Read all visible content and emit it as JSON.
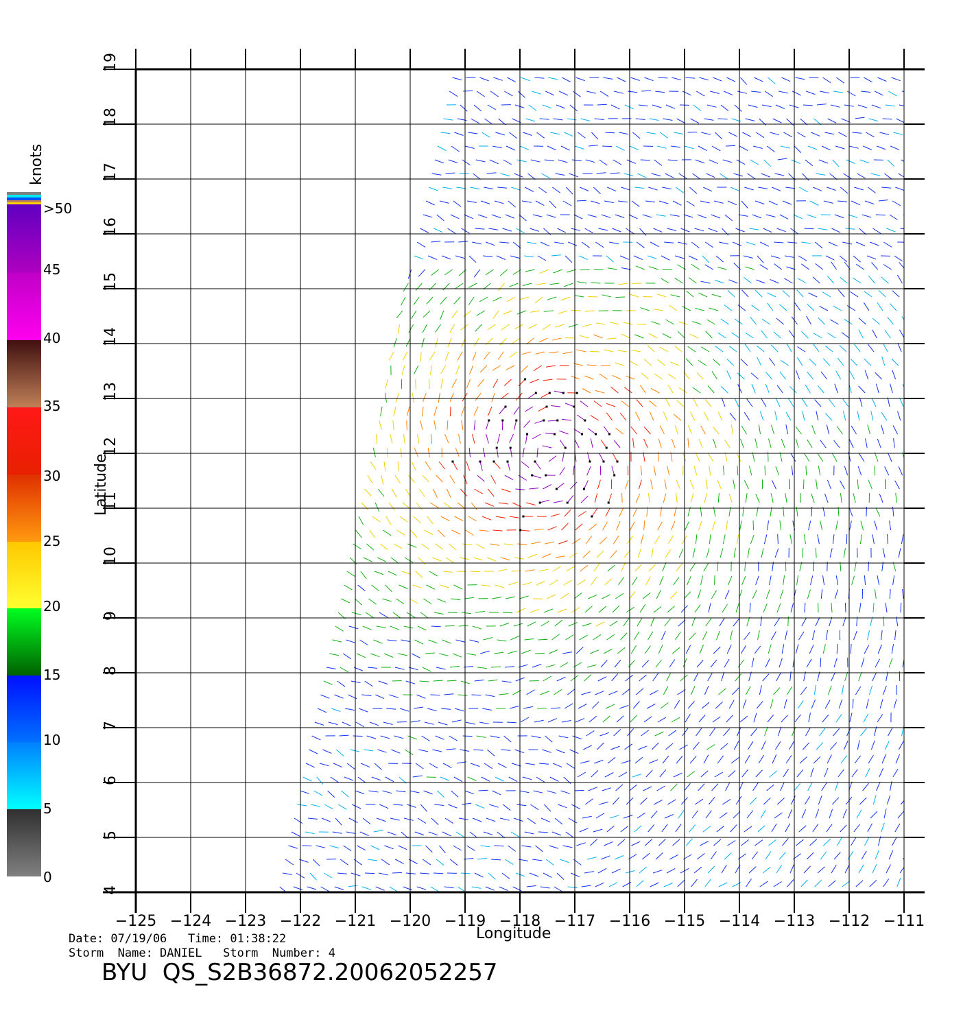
{
  "map": {
    "lon_ticks": [
      "−125",
      "−124",
      "−123",
      "−122",
      "−121",
      "−120",
      "−119",
      "−118",
      "−117",
      "−116",
      "−115",
      "−114",
      "−113",
      "−112",
      "−111"
    ],
    "lat_ticks": [
      "4",
      "5",
      "6",
      "7",
      "8",
      "9",
      "10",
      "11",
      "12",
      "13",
      "14",
      "15",
      "16",
      "17",
      "18",
      "19"
    ],
    "xlabel": "Longitude",
    "ylabel": "Latitude",
    "lon_range": [
      -125,
      -111
    ],
    "lat_range": [
      4,
      19
    ],
    "grid": true
  },
  "legend": {
    "unit": "knots",
    "labels": [
      ">50",
      "45",
      "40",
      "35",
      "30",
      "25",
      "20",
      "15",
      "10",
      "5",
      "0"
    ],
    "colors": {
      "0-5": [
        "#808080",
        "#303030"
      ],
      "5-10": [
        "#00ffff",
        "#0080ff"
      ],
      "10-15": [
        "#0070ff",
        "#0010ff"
      ],
      "15-20": [
        "#006000",
        "#00ff20"
      ],
      "20-25": [
        "#ffff30",
        "#ffc800"
      ],
      "25-30": [
        "#ff9a10",
        "#e03000"
      ],
      "30-35": [
        "#e82000",
        "#ff1818"
      ],
      "35-40": [
        "#c08058",
        "#401010"
      ],
      "40-45": [
        "#ff00ee",
        "#c000c8"
      ],
      "45-50": [
        "#b000c0",
        "#6000c0"
      ]
    }
  },
  "meta": {
    "line1": "Date: 07/19/06   Time: 01:38:22",
    "line2": "Storm  Name: DANIEL   Storm  Number: 4"
  },
  "footer": {
    "title": "BYU  QS_S2B36872.20062052257"
  },
  "wind_field": {
    "storm_center": {
      "lon": -117.5,
      "lat": 12.0
    },
    "swath_west_edge": [
      {
        "lat": 4,
        "lon": -122.4
      },
      {
        "lat": 19,
        "lon": -119.2
      }
    ],
    "flagged_rain_vectors": true
  }
}
